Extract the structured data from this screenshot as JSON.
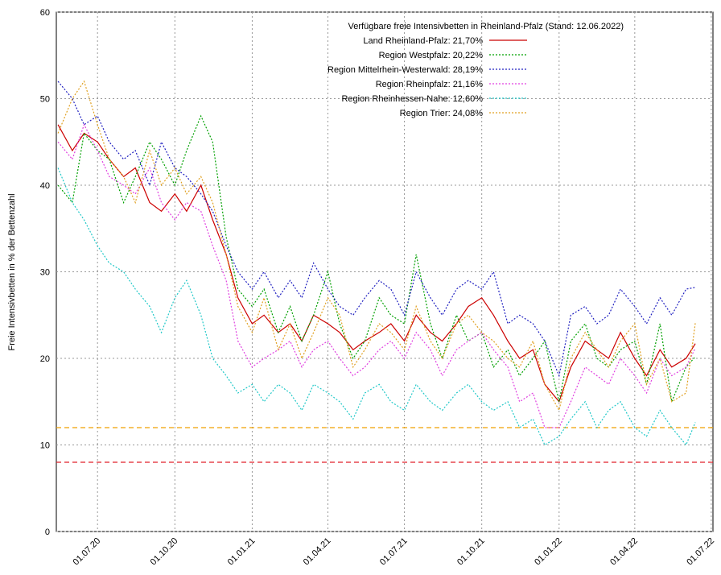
{
  "chart_data": {
    "type": "line",
    "legend_title": "Verfügbare freie Intensivbetten in Rheinland-Pfalz (Stand: 12.06.2022)",
    "y_label": "Freie Intensivbetten in % der Bettenzahl",
    "x": [
      "15.05.20",
      "01.06.20",
      "15.06.20",
      "01.07.20",
      "15.07.20",
      "01.08.20",
      "15.08.20",
      "01.09.20",
      "15.09.20",
      "01.10.20",
      "15.10.20",
      "01.11.20",
      "15.11.20",
      "01.12.20",
      "15.12.20",
      "01.01.21",
      "15.01.21",
      "01.02.21",
      "15.02.21",
      "01.03.21",
      "15.03.21",
      "01.04.21",
      "15.04.21",
      "01.05.21",
      "15.05.21",
      "01.06.21",
      "15.06.21",
      "01.07.21",
      "15.07.21",
      "01.08.21",
      "15.08.21",
      "01.09.21",
      "15.09.21",
      "01.10.21",
      "15.10.21",
      "01.11.21",
      "15.11.21",
      "01.12.21",
      "15.12.21",
      "01.01.22",
      "15.01.22",
      "01.02.22",
      "15.02.22",
      "01.03.22",
      "15.03.22",
      "01.04.22",
      "15.04.22",
      "01.05.22",
      "15.05.22",
      "01.06.22",
      "12.06.22"
    ],
    "xlim": [
      "13.05.20",
      "03.07.22"
    ],
    "xticks": [
      "01.07.20",
      "01.10.20",
      "01.01.21",
      "01.04.21",
      "01.07.21",
      "01.10.21",
      "01.01.22",
      "01.04.22",
      "01.07.22"
    ],
    "ylim": [
      0,
      60
    ],
    "yticks": [
      0,
      10,
      20,
      30,
      40,
      50,
      60
    ],
    "grid": true,
    "reference_lines": [
      {
        "value": 12,
        "color": "#f0a000"
      },
      {
        "value": 8,
        "color": "#e0202a"
      }
    ],
    "series": [
      {
        "name": "Land Rheinland-Pfalz: 21,70%",
        "color": "#cc0000",
        "dash": "none",
        "values": [
          47,
          44,
          46,
          45,
          43,
          41,
          42,
          38,
          37,
          39,
          37,
          40,
          36,
          32,
          27,
          24,
          25,
          23,
          24,
          22,
          25,
          24,
          23,
          21,
          22,
          23,
          24,
          22,
          25,
          23,
          22,
          24,
          26,
          27,
          25,
          22,
          20,
          21,
          17,
          15,
          19,
          22,
          21,
          20,
          23,
          20,
          18,
          21,
          19,
          20,
          21.7
        ]
      },
      {
        "name": "Region Westpfalz: 20,22%",
        "color": "#00a000",
        "dash": "2,2",
        "values": [
          40,
          38,
          46,
          44,
          43,
          38,
          41,
          45,
          43,
          40,
          44,
          48,
          45,
          34,
          28,
          26,
          28,
          23,
          26,
          22,
          25,
          30,
          24,
          20,
          22,
          27,
          25,
          24,
          32,
          24,
          20,
          25,
          22,
          23,
          19,
          21,
          18,
          20,
          22,
          15,
          22,
          24,
          20,
          19,
          21,
          22,
          17,
          24,
          15,
          19,
          20.2
        ]
      },
      {
        "name": "Region Mittelrhein-Westerwald: 28,19%",
        "color": "#2020c0",
        "dash": "2,2",
        "values": [
          52,
          50,
          47,
          48,
          45,
          43,
          44,
          40,
          45,
          42,
          41,
          39,
          37,
          33,
          30,
          28,
          30,
          27,
          29,
          27,
          31,
          28,
          26,
          25,
          27,
          29,
          28,
          25,
          30,
          27,
          25,
          28,
          29,
          28,
          30,
          24,
          25,
          24,
          22,
          18,
          25,
          26,
          24,
          25,
          28,
          26,
          24,
          27,
          25,
          28,
          28.2
        ]
      },
      {
        "name": "Region Rheinpfalz: 21,16%",
        "color": "#e040e0",
        "dash": "2,2",
        "values": [
          45,
          43,
          47,
          44,
          41,
          40,
          39,
          42,
          38,
          36,
          38,
          37,
          33,
          29,
          22,
          19,
          20,
          21,
          22,
          19,
          21,
          22,
          20,
          18,
          19,
          21,
          22,
          20,
          23,
          21,
          18,
          21,
          22,
          23,
          21,
          19,
          15,
          16,
          12,
          12,
          15,
          19,
          18,
          17,
          20,
          18,
          16,
          20,
          18,
          19,
          21.2
        ]
      },
      {
        "name": "Region Rheinhessen-Nahe: 12,60%",
        "color": "#20c8c8",
        "dash": "2,2",
        "values": [
          42,
          38,
          36,
          33,
          31,
          30,
          28,
          26,
          23,
          27,
          29,
          25,
          20,
          18,
          16,
          17,
          15,
          17,
          16,
          14,
          17,
          16,
          15,
          13,
          16,
          17,
          15,
          14,
          17,
          15,
          14,
          16,
          17,
          15,
          14,
          15,
          12,
          13,
          10,
          11,
          13,
          15,
          12,
          14,
          15,
          12,
          11,
          14,
          12,
          10,
          12.6
        ]
      },
      {
        "name": "Region Trier: 24,08%",
        "color": "#e0a020",
        "dash": "2,2",
        "values": [
          46,
          50,
          52,
          47,
          43,
          41,
          38,
          44,
          40,
          42,
          39,
          41,
          38,
          32,
          26,
          23,
          27,
          21,
          24,
          20,
          23,
          27,
          25,
          19,
          21,
          24,
          23,
          21,
          26,
          22,
          20,
          24,
          25,
          23,
          22,
          20,
          19,
          22,
          17,
          14,
          20,
          23,
          21,
          19,
          22,
          24,
          17,
          20,
          15,
          16,
          24.1
        ]
      }
    ]
  }
}
